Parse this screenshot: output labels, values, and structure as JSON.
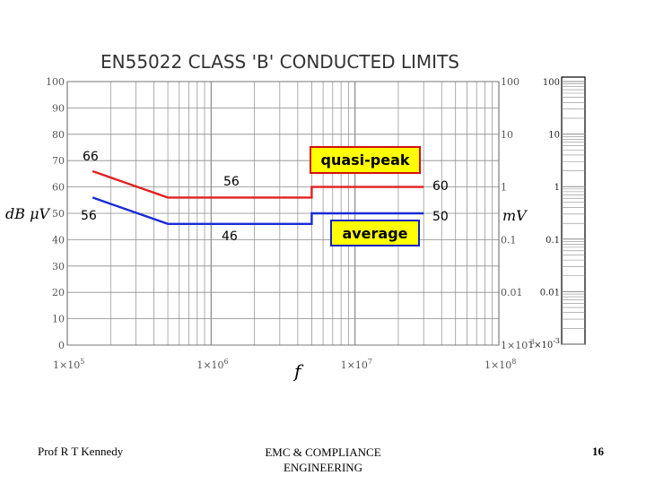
{
  "footer": {
    "author": "Prof R T Kennedy",
    "course_line1": "EMC & COMPLIANCE",
    "course_line2": "ENGINEERING",
    "page_number": "16"
  },
  "colors": {
    "quasi_peak": "#e02020",
    "average": "#1a2ad8",
    "box_fill": "#ffff00",
    "grid": "#8a8a8a",
    "axis_text": "#555555"
  },
  "chart_data": {
    "type": "line",
    "title": "EN55022 CLASS 'B' CONDUCTED LIMITS",
    "xlabel": "f",
    "ylabel": "dB μV",
    "right_axis_label": "mV",
    "x_scale": "log",
    "xlim": [
      100000,
      100000000
    ],
    "ylim": [
      0,
      100
    ],
    "grid": true,
    "x_tick_labels": [
      "1×10^5",
      "1×10^6",
      "1×10^7",
      "1×10^8"
    ],
    "y_ticks": [
      0,
      10,
      20,
      30,
      40,
      50,
      60,
      70,
      80,
      90,
      100
    ],
    "right_ticks": [
      "100",
      "10",
      "1",
      "0.1",
      "0.01",
      "1×10^-3"
    ],
    "side_panel_ticks": [
      "100",
      "10",
      "1",
      "0.1",
      "0.01",
      "1×10^-3"
    ],
    "series": [
      {
        "name": "quasi-peak",
        "color": "#e02020",
        "x": [
          150000,
          500000,
          500000,
          5000000,
          5000000,
          30000000
        ],
        "y": [
          66,
          56,
          56,
          56,
          60,
          60
        ]
      },
      {
        "name": "average",
        "color": "#1a2ad8",
        "x": [
          150000,
          500000,
          500000,
          5000000,
          5000000,
          30000000
        ],
        "y": [
          56,
          46,
          46,
          46,
          50,
          50
        ]
      }
    ],
    "annotations": [
      "66",
      "56",
      "56",
      "46",
      "60",
      "50"
    ]
  }
}
